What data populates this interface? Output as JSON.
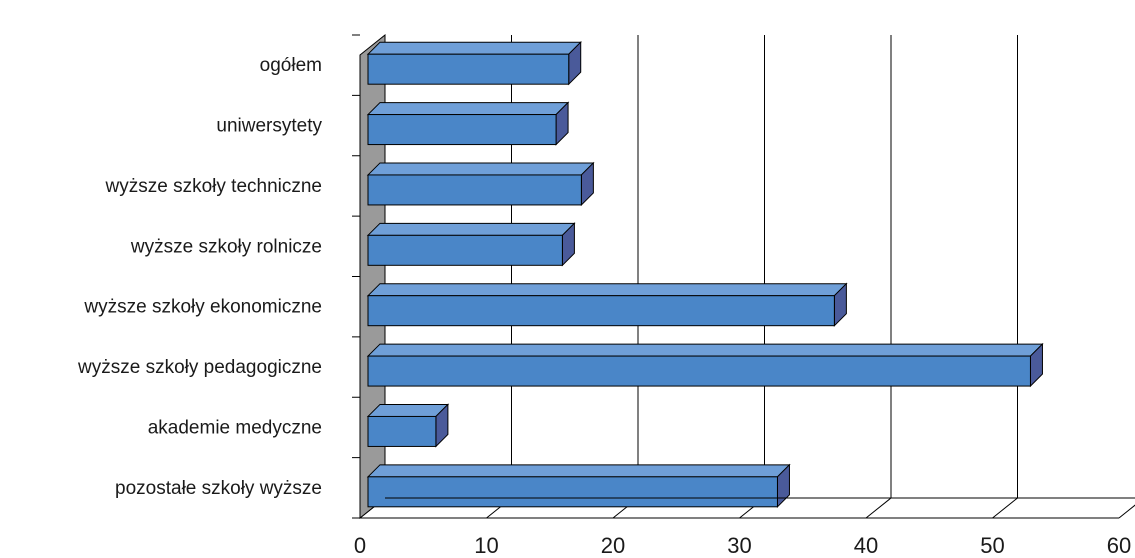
{
  "chart_data": {
    "type": "bar",
    "orientation": "horizontal",
    "style": "3d",
    "categories": [
      "ogółem",
      "uniwersytety",
      "wyższe szkoły techniczne",
      "wyższe szkoły rolnicze",
      "wyższe szkoły ekonomiczne",
      "wyższe szkoły pedagogiczne",
      "akademie medyczne",
      "pozostałe szkoły wyższe"
    ],
    "values": [
      16.5,
      15.5,
      17.5,
      16.0,
      37.5,
      53.0,
      6.0,
      33.0
    ],
    "xlim": [
      0,
      60
    ],
    "xticks": [
      "0",
      "10",
      "20",
      "30",
      "40",
      "50",
      "60"
    ],
    "title": "",
    "xlabel": "",
    "ylabel": "",
    "grid": "vertical",
    "legend": "none",
    "colors": {
      "bar_front": "#4a86c8",
      "bar_top": "#6f9fd8",
      "bar_side": "#4a5a9a",
      "wall": "#9a9a9a",
      "outline": "#000000"
    }
  }
}
